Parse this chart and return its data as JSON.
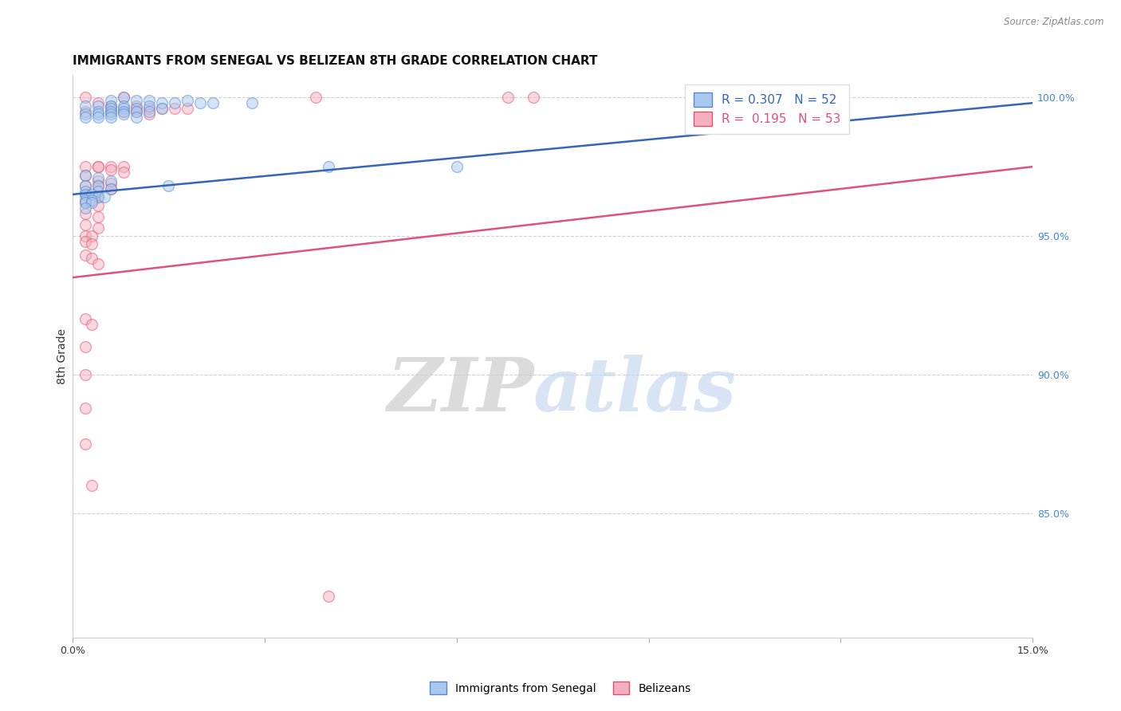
{
  "title": "IMMIGRANTS FROM SENEGAL VS BELIZEAN 8TH GRADE CORRELATION CHART",
  "source": "Source: ZipAtlas.com",
  "ylabel": "8th Grade",
  "ylabel_right_ticks": [
    "100.0%",
    "95.0%",
    "90.0%",
    "85.0%"
  ],
  "ylabel_right_vals": [
    1.0,
    0.95,
    0.9,
    0.85
  ],
  "xlim": [
    0.0,
    0.15
  ],
  "ylim": [
    0.805,
    1.008
  ],
  "blue_R": "0.307",
  "blue_N": "52",
  "pink_R": "0.195",
  "pink_N": "53",
  "legend_blue": "Immigrants from Senegal",
  "legend_pink": "Belizeans",
  "blue_color": "#A8C8F0",
  "pink_color": "#F5B0C0",
  "blue_edge_color": "#5588CC",
  "pink_edge_color": "#E05070",
  "blue_line_color": "#3366BB",
  "pink_line_color": "#E05080",
  "blue_line": [
    0.0,
    0.15,
    0.965,
    0.998
  ],
  "pink_line": [
    0.0,
    0.15,
    0.935,
    0.975
  ],
  "blue_scatter_x": [
    0.008,
    0.012,
    0.018,
    0.022,
    0.028,
    0.006,
    0.01,
    0.014,
    0.016,
    0.02,
    0.004,
    0.008,
    0.012,
    0.006,
    0.01,
    0.014,
    0.002,
    0.006,
    0.008,
    0.01,
    0.004,
    0.006,
    0.008,
    0.012,
    0.002,
    0.004,
    0.006,
    0.008,
    0.002,
    0.004,
    0.006,
    0.01,
    0.002,
    0.004,
    0.006,
    0.002,
    0.004,
    0.006,
    0.002,
    0.004,
    0.002,
    0.003,
    0.004,
    0.005,
    0.04,
    0.002,
    0.003,
    0.015,
    0.002,
    0.003,
    0.002,
    0.06
  ],
  "blue_scatter_y": [
    1.0,
    0.999,
    0.999,
    0.998,
    0.998,
    0.999,
    0.999,
    0.998,
    0.998,
    0.998,
    0.997,
    0.997,
    0.997,
    0.997,
    0.996,
    0.996,
    0.997,
    0.996,
    0.996,
    0.995,
    0.995,
    0.995,
    0.995,
    0.995,
    0.994,
    0.994,
    0.994,
    0.994,
    0.993,
    0.993,
    0.993,
    0.993,
    0.972,
    0.971,
    0.97,
    0.968,
    0.968,
    0.967,
    0.966,
    0.966,
    0.965,
    0.965,
    0.964,
    0.964,
    0.975,
    0.963,
    0.963,
    0.968,
    0.962,
    0.962,
    0.96,
    0.975
  ],
  "pink_scatter_x": [
    0.002,
    0.008,
    0.038,
    0.068,
    0.072,
    0.004,
    0.006,
    0.01,
    0.012,
    0.014,
    0.016,
    0.018,
    0.002,
    0.006,
    0.008,
    0.01,
    0.012,
    0.004,
    0.006,
    0.008,
    0.002,
    0.004,
    0.006,
    0.008,
    0.002,
    0.004,
    0.006,
    0.002,
    0.004,
    0.006,
    0.002,
    0.004,
    0.002,
    0.004,
    0.002,
    0.004,
    0.002,
    0.004,
    0.002,
    0.003,
    0.002,
    0.003,
    0.002,
    0.003,
    0.004,
    0.002,
    0.003,
    0.002,
    0.002,
    0.002,
    0.002,
    0.003,
    0.04
  ],
  "pink_scatter_y": [
    1.0,
    1.0,
    1.0,
    1.0,
    1.0,
    0.998,
    0.997,
    0.997,
    0.996,
    0.996,
    0.996,
    0.996,
    0.995,
    0.995,
    0.995,
    0.995,
    0.994,
    0.975,
    0.975,
    0.975,
    0.975,
    0.975,
    0.974,
    0.973,
    0.972,
    0.97,
    0.969,
    0.968,
    0.968,
    0.967,
    0.965,
    0.964,
    0.962,
    0.961,
    0.958,
    0.957,
    0.954,
    0.953,
    0.95,
    0.95,
    0.948,
    0.947,
    0.943,
    0.942,
    0.94,
    0.92,
    0.918,
    0.91,
    0.9,
    0.888,
    0.875,
    0.86,
    0.82
  ],
  "watermark_zip": "ZIP",
  "watermark_atlas": "atlas",
  "background_color": "#ffffff",
  "grid_color": "#cccccc",
  "title_fontsize": 11,
  "axis_label_fontsize": 10,
  "legend_fontsize": 11,
  "marker_size": 100,
  "marker_alpha": 0.5,
  "marker_lw": 1.0
}
